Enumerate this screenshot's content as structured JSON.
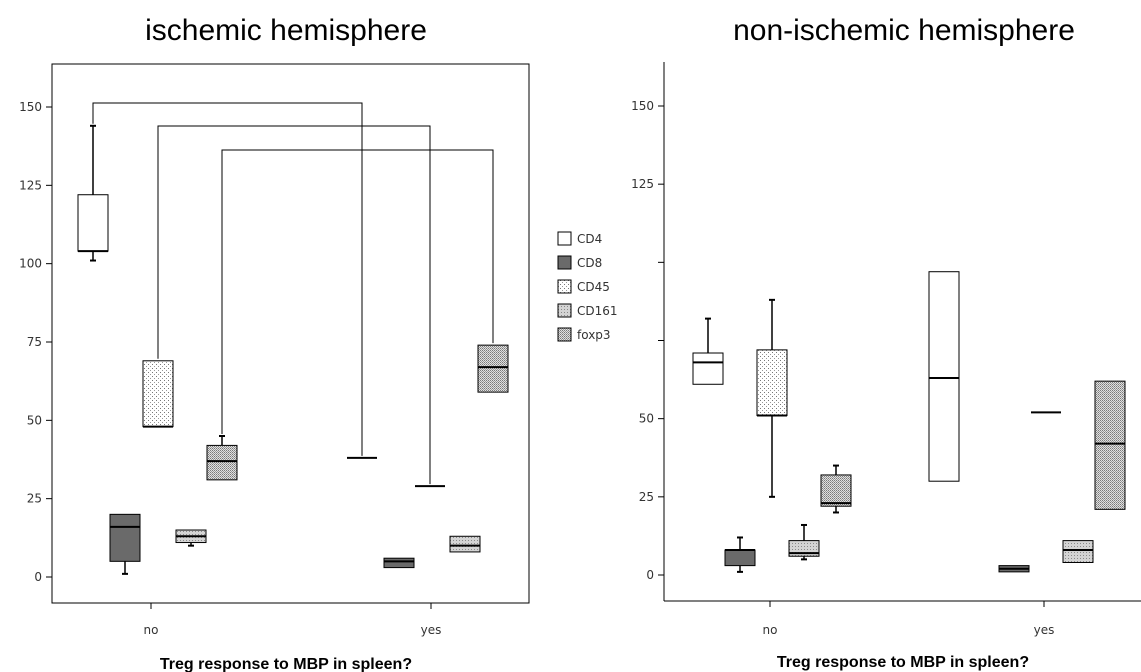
{
  "colors": {
    "CD4": "#ffffff",
    "CD8": "#6a6a6a",
    "CD45": "#ffffff",
    "CD161": "#d9d9d9",
    "foxp3": "#d6d6d6"
  },
  "legend": [
    "CD4",
    "CD8",
    "CD45",
    "CD161",
    "foxp3"
  ],
  "chart_data": [
    {
      "type": "boxplot",
      "title": "ischemic hemisphere",
      "xlabel": "Treg response to MBP in spleen?",
      "ylabel": "",
      "categories": [
        "no",
        "yes"
      ],
      "ylim": [
        -8,
        150
      ],
      "yticks": [
        "150",
        "125",
        "100",
        "75",
        "50",
        "25",
        "0"
      ],
      "series": [
        {
          "name": "CD4",
          "boxes": [
            {
              "min": 101,
              "q1": 104,
              "median": 104,
              "q3": 122,
              "max": 144
            },
            {
              "min": 38,
              "q1": 38,
              "median": 38,
              "q3": 38,
              "max": 38
            }
          ]
        },
        {
          "name": "CD8",
          "boxes": [
            {
              "min": 1,
              "q1": 5,
              "median": 16,
              "q3": 20,
              "max": 20
            },
            {
              "min": 3,
              "q1": 3,
              "median": 5,
              "q3": 6,
              "max": 6
            }
          ]
        },
        {
          "name": "CD45",
          "boxes": [
            {
              "min": 48,
              "q1": 48,
              "median": 48,
              "q3": 69,
              "max": 69
            },
            {
              "min": 29,
              "q1": 29,
              "median": 29,
              "q3": 29,
              "max": 29
            }
          ]
        },
        {
          "name": "CD161",
          "boxes": [
            {
              "min": 10,
              "q1": 11,
              "median": 13,
              "q3": 15,
              "max": 15
            },
            {
              "min": 8,
              "q1": 8,
              "median": 10,
              "q3": 13,
              "max": 13
            }
          ]
        },
        {
          "name": "foxp3",
          "boxes": [
            {
              "min": 31,
              "q1": 31,
              "median": 37,
              "q3": 42,
              "max": 45
            },
            {
              "min": 59,
              "q1": 59,
              "median": 67,
              "q3": 74,
              "max": 74
            }
          ]
        }
      ],
      "significance_brackets": [
        {
          "series": "CD4",
          "from": "no",
          "to": "yes"
        },
        {
          "series": "CD45",
          "from": "no",
          "to": "yes"
        },
        {
          "series": "foxp3",
          "from": "no",
          "to": "yes"
        }
      ]
    },
    {
      "type": "boxplot",
      "title": "non-ischemic hemisphere",
      "xlabel": "Treg response to MBP in spleen?",
      "ylabel": "",
      "categories": [
        "no",
        "yes"
      ],
      "ylim": [
        -8,
        165
      ],
      "yticks": [
        "150",
        "125",
        "",
        "",
        "50",
        "25",
        "0"
      ],
      "series": [
        {
          "name": "CD4",
          "boxes": [
            {
              "min": 61,
              "q1": 61,
              "median": 68,
              "q3": 71,
              "max": 82
            },
            {
              "min": 30,
              "q1": 30,
              "median": 63,
              "q3": 97,
              "max": 97
            }
          ]
        },
        {
          "name": "CD8",
          "boxes": [
            {
              "min": 1,
              "q1": 3,
              "median": 8,
              "q3": 8,
              "max": 12
            },
            {
              "min": 1,
              "q1": 1,
              "median": 2,
              "q3": 3,
              "max": 3
            }
          ]
        },
        {
          "name": "CD45",
          "boxes": [
            {
              "min": 25,
              "q1": 51,
              "median": 51,
              "q3": 72,
              "max": 88
            },
            {
              "min": 52,
              "q1": 52,
              "median": 52,
              "q3": 52,
              "max": 52
            }
          ]
        },
        {
          "name": "CD161",
          "boxes": [
            {
              "min": 5,
              "q1": 6,
              "median": 7,
              "q3": 11,
              "max": 16
            },
            {
              "min": 4,
              "q1": 4,
              "median": 8,
              "q3": 11,
              "max": 11
            }
          ]
        },
        {
          "name": "foxp3",
          "boxes": [
            {
              "min": 20,
              "q1": 22,
              "median": 23,
              "q3": 32,
              "max": 35
            },
            {
              "min": 21,
              "q1": 21,
              "median": 42,
              "q3": 62,
              "max": 62
            }
          ]
        }
      ],
      "significance_brackets": []
    }
  ]
}
